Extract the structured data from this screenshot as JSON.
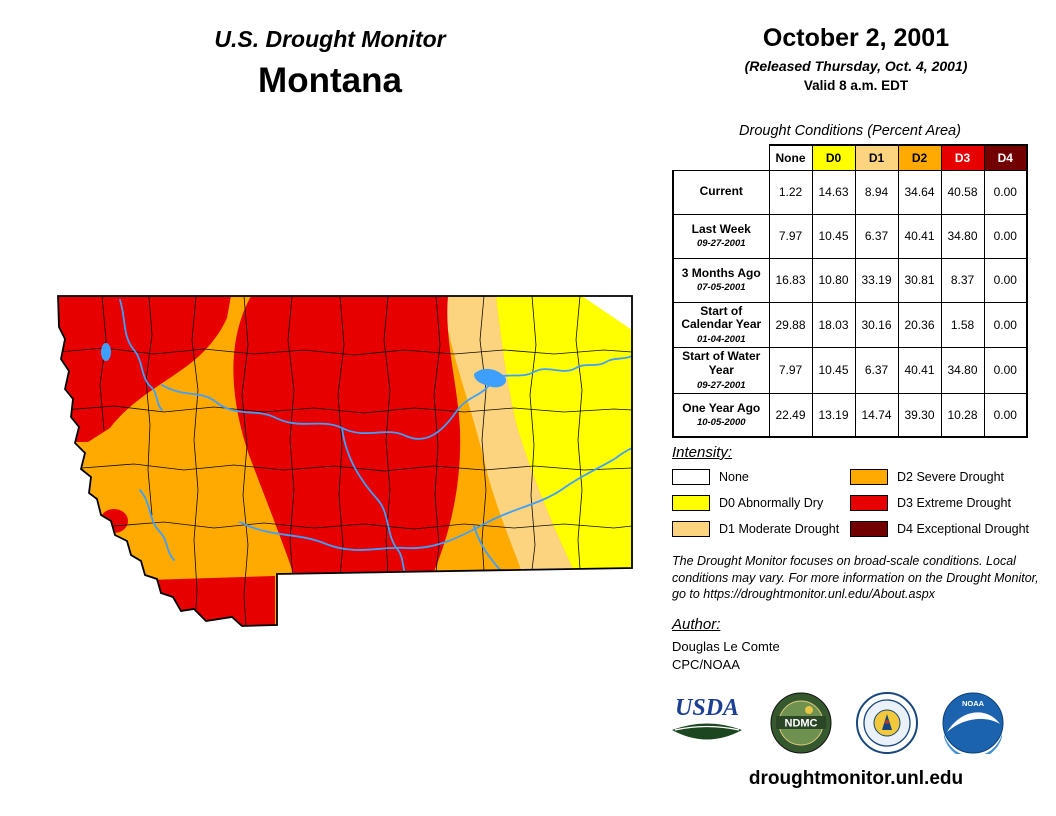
{
  "header": {
    "report_title": "U.S. Drought Monitor",
    "state_name": "Montana",
    "date": "October 2, 2001",
    "released": "(Released Thursday, Oct. 4, 2001)",
    "valid": "Valid 8 a.m. EDT"
  },
  "colors": {
    "none": "#FFFFFF",
    "d0": "#FFFF00",
    "d1": "#FCD37F",
    "d2": "#FFAA00",
    "d3": "#E60000",
    "d4": "#730000",
    "river": "#3F9FFF",
    "outline": "#000000"
  },
  "table": {
    "title": "Drought Conditions (Percent Area)",
    "columns": [
      {
        "label": "None",
        "color": "none",
        "text_color": "#000000"
      },
      {
        "label": "D0",
        "color": "d0",
        "text_color": "#000000"
      },
      {
        "label": "D1",
        "color": "d1",
        "text_color": "#000000"
      },
      {
        "label": "D2",
        "color": "d2",
        "text_color": "#000000"
      },
      {
        "label": "D3",
        "color": "d3",
        "text_color": "#FFFFFF"
      },
      {
        "label": "D4",
        "color": "d4",
        "text_color": "#FFFFFF"
      }
    ],
    "rows": [
      {
        "label": "Current",
        "date": "",
        "values": [
          "1.22",
          "14.63",
          "8.94",
          "34.64",
          "40.58",
          "0.00"
        ]
      },
      {
        "label": "Last Week",
        "date": "09-27-2001",
        "values": [
          "7.97",
          "10.45",
          "6.37",
          "40.41",
          "34.80",
          "0.00"
        ]
      },
      {
        "label": "3 Months Ago",
        "date": "07-05-2001",
        "values": [
          "16.83",
          "10.80",
          "33.19",
          "30.81",
          "8.37",
          "0.00"
        ]
      },
      {
        "label": "Start of Calendar Year",
        "date": "01-04-2001",
        "values": [
          "29.88",
          "18.03",
          "30.16",
          "20.36",
          "1.58",
          "0.00"
        ]
      },
      {
        "label": "Start of Water Year",
        "date": "09-27-2001",
        "values": [
          "7.97",
          "10.45",
          "6.37",
          "40.41",
          "34.80",
          "0.00"
        ]
      },
      {
        "label": "One Year Ago",
        "date": "10-05-2000",
        "values": [
          "22.49",
          "13.19",
          "14.74",
          "39.30",
          "10.28",
          "0.00"
        ]
      }
    ]
  },
  "legend": {
    "title": "Intensity:",
    "items": [
      {
        "code": "none",
        "label": "None"
      },
      {
        "code": "d0",
        "label": "D0 Abnormally Dry"
      },
      {
        "code": "d1",
        "label": "D1 Moderate Drought"
      },
      {
        "code": "d2",
        "label": "D2 Severe Drought"
      },
      {
        "code": "d3",
        "label": "D3 Extreme Drought"
      },
      {
        "code": "d4",
        "label": "D4 Exceptional Drought"
      }
    ]
  },
  "disclaimer": "The Drought Monitor focuses on broad-scale conditions. Local conditions may vary. For more information on the Drought Monitor, go to https://droughtmonitor.unl.edu/About.aspx",
  "author": {
    "title": "Author:",
    "name": "Douglas Le Comte",
    "org": "CPC/NOAA"
  },
  "logos": {
    "usda": "USDA",
    "ndmc": "NDMC",
    "noaa": "NOAA"
  },
  "footer": {
    "url": "droughtmonitor.unl.edu"
  }
}
